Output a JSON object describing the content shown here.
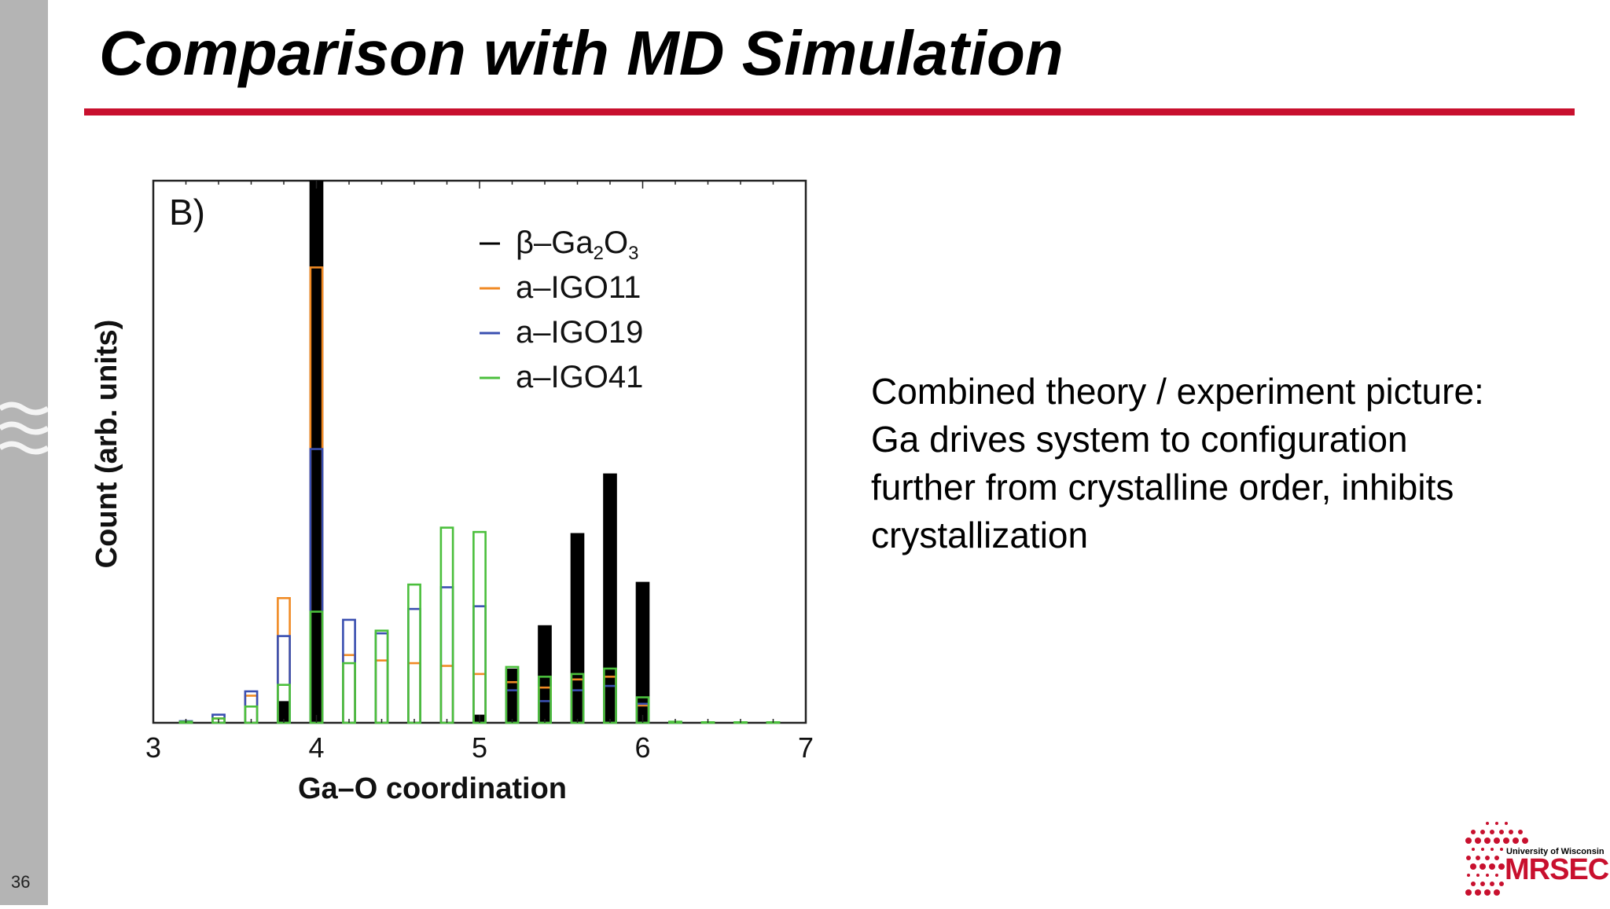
{
  "slide": {
    "number": "36",
    "title": "Comparison with MD Simulation",
    "body_lines": [
      "Combined theory / experiment picture:",
      "Ga drives system to configuration",
      "further from crystalline order, inhibits",
      "crystallization"
    ]
  },
  "logo": {
    "university": "University of Wisconsin",
    "name": "MRSEC",
    "color": "#c8102e"
  },
  "chart_data": {
    "type": "bar",
    "panel_label": "B)",
    "xlabel": "Ga–O coordination",
    "ylabel": "Count (arb. units)",
    "xlim": [
      3,
      7
    ],
    "ylim": [
      0,
      100
    ],
    "xticks": [
      "3",
      "4",
      "5",
      "6",
      "7"
    ],
    "legend_position": "top-right",
    "legend_entries": [
      {
        "label": "β–Ga",
        "sub1": "2",
        "mid": "O",
        "sub2": "3"
      },
      {
        "label": "a–IGO11"
      },
      {
        "label": "a–IGO19"
      },
      {
        "label": "a–IGO41"
      }
    ],
    "x": [
      3.2,
      3.4,
      3.6,
      3.8,
      4.0,
      4.2,
      4.4,
      4.6,
      4.8,
      5.0,
      5.2,
      5.4,
      5.6,
      5.8,
      6.0,
      6.2,
      6.4,
      6.6,
      6.8
    ],
    "series": [
      {
        "name": "β–Ga2O3",
        "style": "filled",
        "color": "#000000",
        "values": [
          0,
          0,
          0,
          4,
          100,
          0,
          0,
          0,
          0,
          1.5,
          10,
          18,
          35,
          46,
          26,
          0,
          0,
          0,
          0
        ]
      },
      {
        "name": "a–IGO11",
        "style": "outline",
        "color": "#f08a24",
        "values": [
          0.2,
          0.8,
          5,
          23,
          84,
          12.5,
          11.5,
          11,
          10.5,
          9,
          7.5,
          6.5,
          8,
          8.5,
          3.2,
          0.1,
          0,
          0,
          0
        ]
      },
      {
        "name": "a–IGO19",
        "style": "outline",
        "color": "#3a4fb0",
        "values": [
          0.3,
          1.5,
          5.8,
          16,
          50.5,
          19,
          16.5,
          21,
          25,
          21.5,
          6,
          4,
          6,
          6.8,
          3.5,
          0.1,
          0,
          0,
          0
        ]
      },
      {
        "name": "a–IGO41",
        "style": "outline",
        "color": "#4bbf3c",
        "values": [
          0.2,
          0.8,
          3,
          7,
          20.5,
          11,
          17,
          25.5,
          36,
          35.2,
          10.3,
          8.5,
          9,
          10,
          4.7,
          0.2,
          0.1,
          0.1,
          0.1
        ]
      }
    ]
  }
}
